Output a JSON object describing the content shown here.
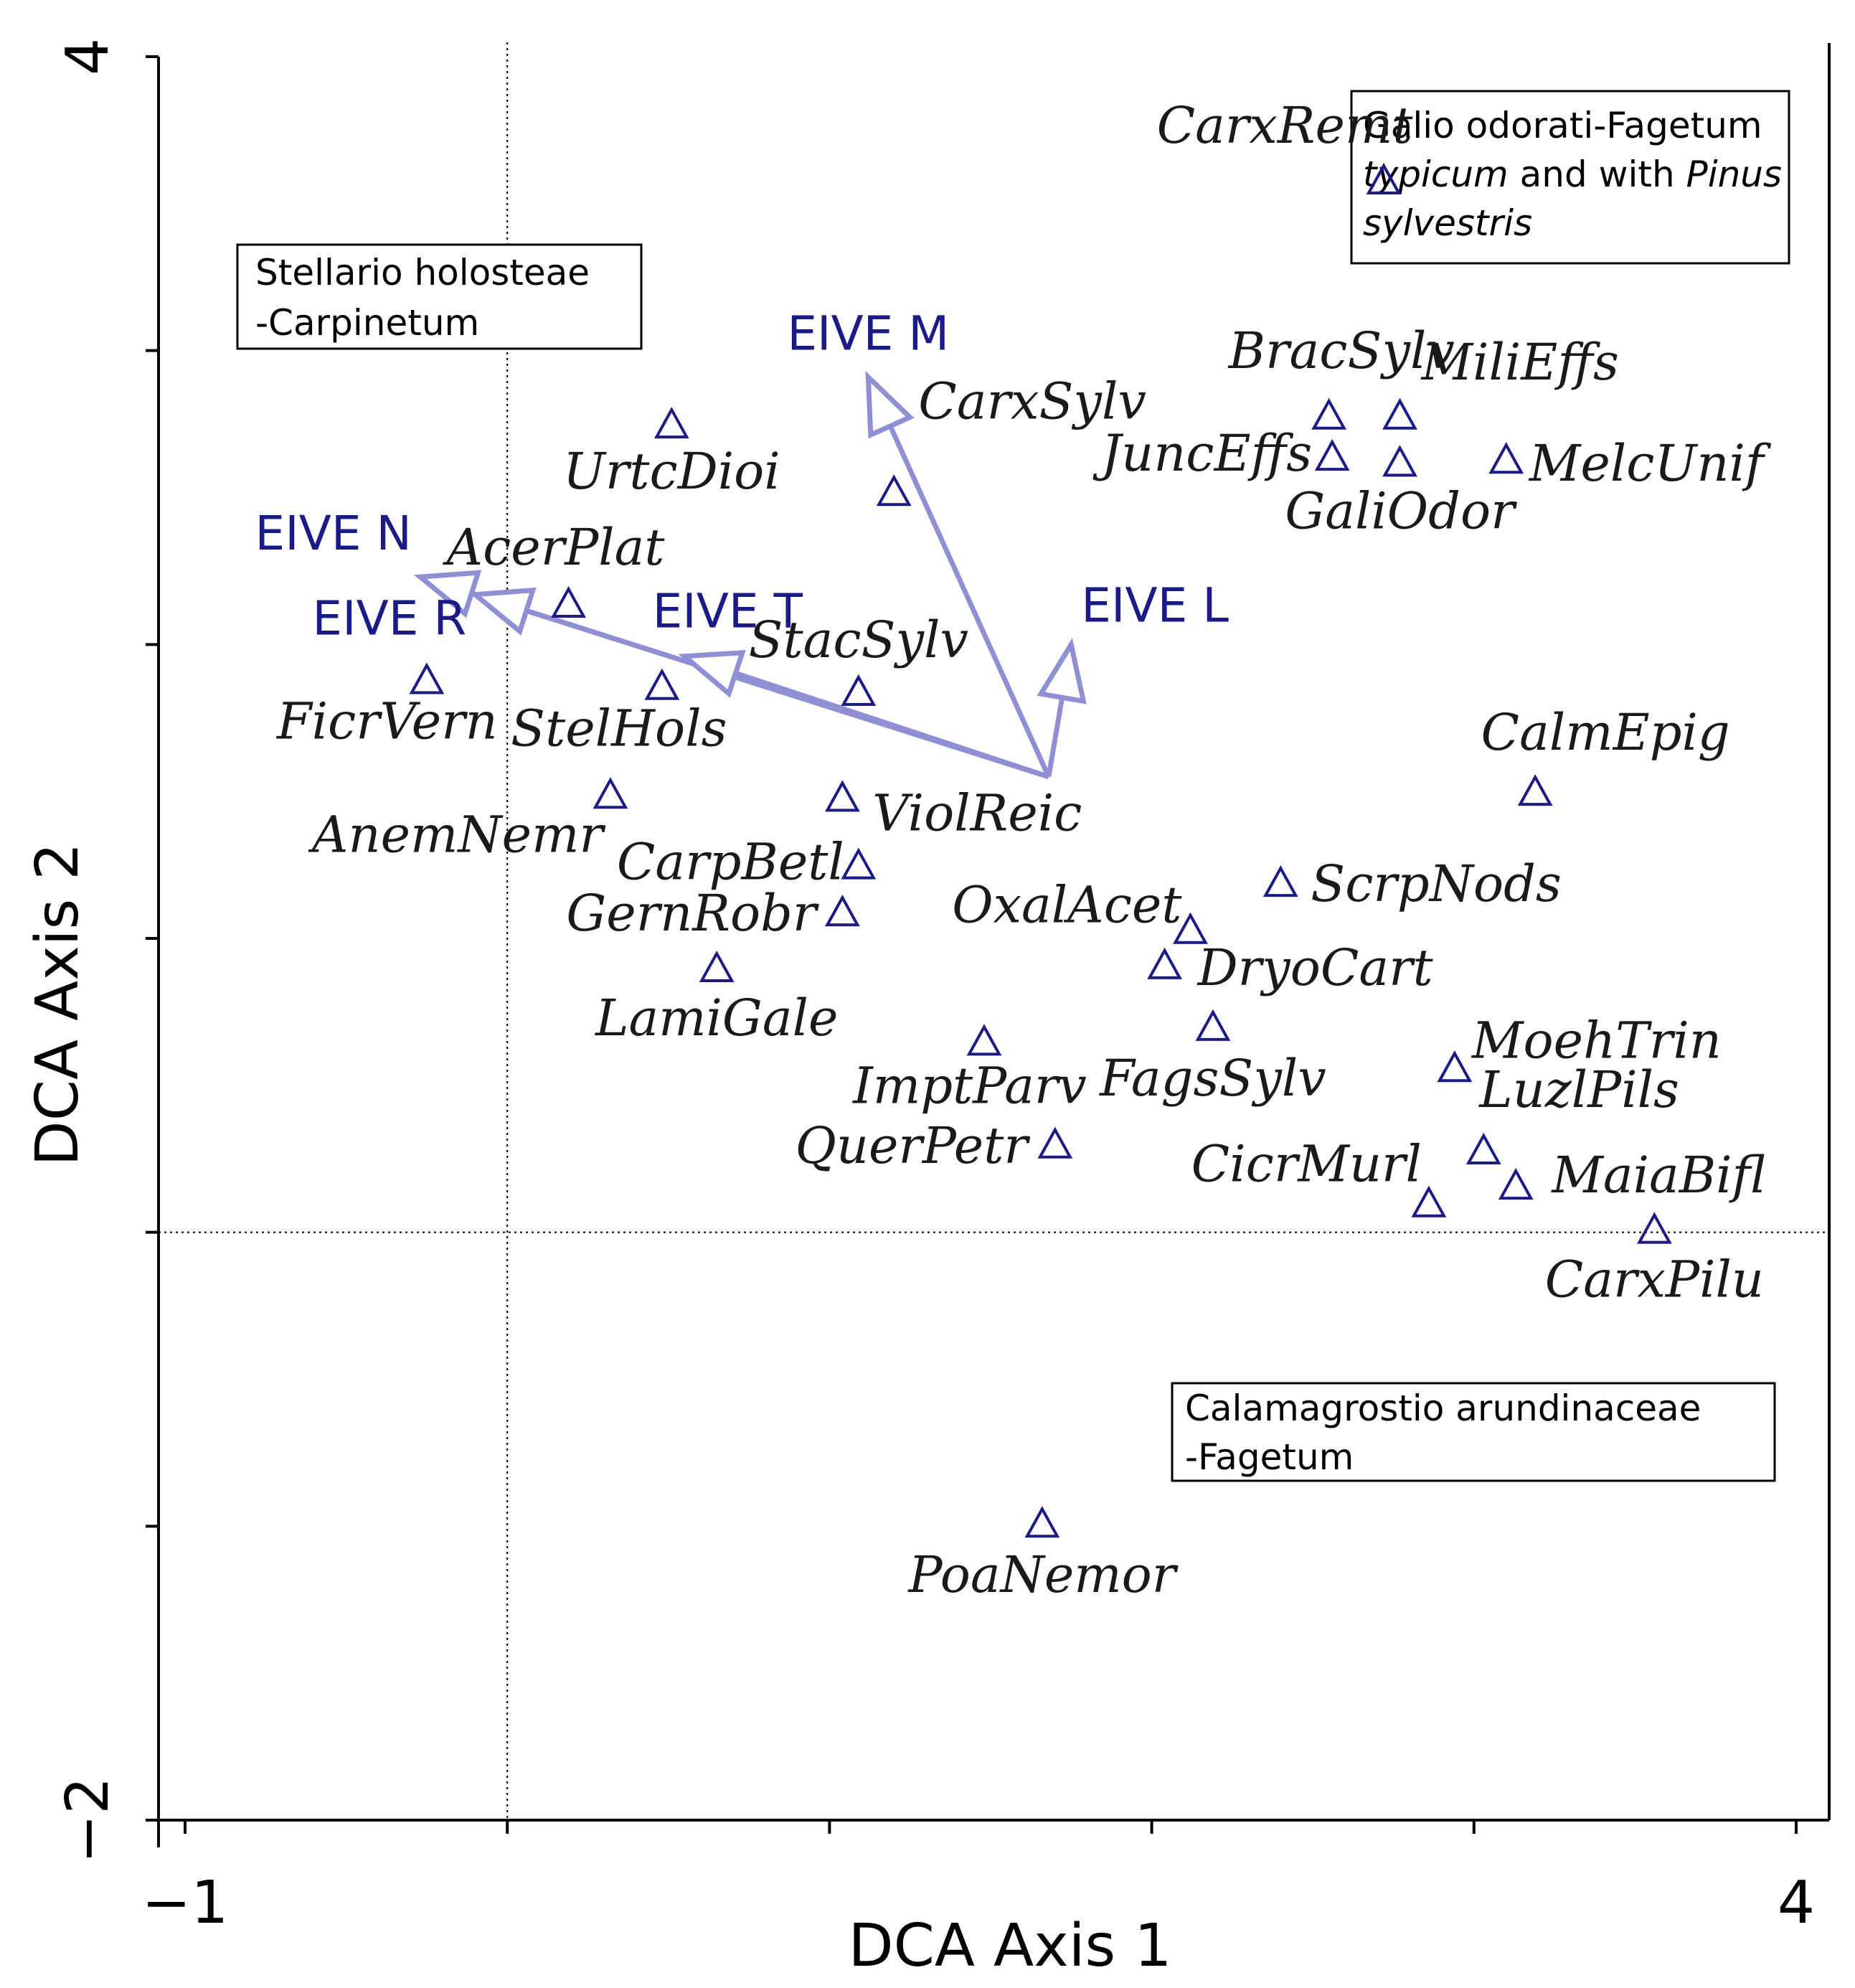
{
  "chart_data": {
    "type": "scatter",
    "xlabel": "DCA Axis 1",
    "ylabel": "DCA Axis 2",
    "xlim": [
      -1,
      4
    ],
    "ylim": [
      -2,
      4
    ],
    "x_tick_labels": [
      "−1",
      "4"
    ],
    "y_tick_labels": [
      "−2",
      "4"
    ],
    "reference_lines": {
      "x": 0,
      "y": 0
    },
    "colors": {
      "points": "#1a1a8c",
      "arrows": "#8f8fd6",
      "vector_labels": "#1a1a8c",
      "text": "#1a1a1a"
    },
    "species": [
      {
        "name": "CarxRemt",
        "x": 2.72,
        "y": 3.58
      },
      {
        "name": "BracSylv",
        "x": 2.55,
        "y": 2.78
      },
      {
        "name": "MiliEffs",
        "x": 2.77,
        "y": 2.78
      },
      {
        "name": "JuncEffs",
        "x": 2.56,
        "y": 2.64
      },
      {
        "name": "GaliOdor",
        "x": 2.77,
        "y": 2.62
      },
      {
        "name": "MelcUnif",
        "x": 3.1,
        "y": 2.63
      },
      {
        "name": "UrtcDioi",
        "x": 0.51,
        "y": 2.75
      },
      {
        "name": "CarxSylv",
        "x": 1.2,
        "y": 2.52
      },
      {
        "name": "AcerPlat",
        "x": 0.19,
        "y": 2.14
      },
      {
        "name": "FicrVern",
        "x": -0.25,
        "y": 1.88
      },
      {
        "name": "StelHols",
        "x": 0.48,
        "y": 1.86
      },
      {
        "name": "StacSylv",
        "x": 1.09,
        "y": 1.84
      },
      {
        "name": "CalmEpig",
        "x": 3.19,
        "y": 1.5
      },
      {
        "name": "AnemNemr",
        "x": 0.32,
        "y": 1.49
      },
      {
        "name": "ViolReic",
        "x": 1.04,
        "y": 1.48
      },
      {
        "name": "CarpBetl",
        "x": 1.09,
        "y": 1.25
      },
      {
        "name": "ScrpNods",
        "x": 2.4,
        "y": 1.19
      },
      {
        "name": "GernRobr",
        "x": 1.04,
        "y": 1.09
      },
      {
        "name": "OxalAcet",
        "x": 2.12,
        "y": 1.03
      },
      {
        "name": "LamiGale",
        "x": 0.65,
        "y": 0.9
      },
      {
        "name": "DryoCart",
        "x": 2.04,
        "y": 0.91
      },
      {
        "name": "ImptParv",
        "x": 1.48,
        "y": 0.65
      },
      {
        "name": "FagsSylv",
        "x": 2.19,
        "y": 0.7
      },
      {
        "name": "MoehTrin",
        "x": 2.94,
        "y": 0.56
      },
      {
        "name": "QuerPetr",
        "x": 1.7,
        "y": 0.3
      },
      {
        "name": "LuzlPils",
        "x": 3.03,
        "y": 0.28
      },
      {
        "name": "CicrMurl",
        "x": 2.86,
        "y": 0.1
      },
      {
        "name": "MaiaBifl",
        "x": 3.13,
        "y": 0.16
      },
      {
        "name": "CarxPilu",
        "x": 3.56,
        "y": 0.01
      },
      {
        "name": "PoaNemor",
        "x": 1.66,
        "y": -0.99
      }
    ],
    "vectors": {
      "origin": {
        "x": 1.68,
        "y": 1.55
      },
      "items": [
        {
          "name": "EIVE M",
          "x": 1.12,
          "y": 2.91
        },
        {
          "name": "EIVE L",
          "x": 1.75,
          "y": 2.0
        },
        {
          "name": "EIVE N",
          "x": -0.27,
          "y": 2.23
        },
        {
          "name": "EIVE R",
          "x": -0.1,
          "y": 2.17
        },
        {
          "name": "EIVE T",
          "x": 0.55,
          "y": 1.96
        }
      ]
    },
    "group_boxes": [
      {
        "name": "Stellario holosteae -Carpinetum",
        "lines": [
          [
            "Stellario holosteae"
          ],
          [
            "-Carpinetum"
          ]
        ]
      },
      {
        "name": "Galio odorati-Fagetum typicum and with Pinus sylvestris",
        "lines": [
          [
            "Galio odorati-Fagetum"
          ],
          [
            "typicum",
            " and with ",
            "Pinus"
          ],
          [
            "sylvestris"
          ]
        ]
      },
      {
        "name": "Calamagrostio arundinaceae -Fagetum",
        "lines": [
          [
            "Calamagrostio arundinaceae"
          ],
          [
            "-Fagetum"
          ]
        ]
      }
    ]
  }
}
